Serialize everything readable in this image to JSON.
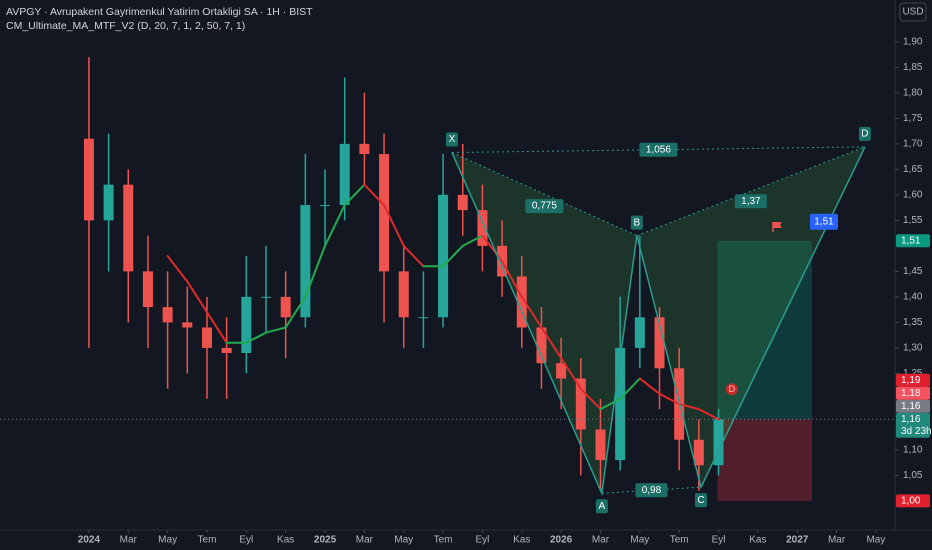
{
  "chart_data": {
    "type": "candlestick",
    "title": "AVPGY · Avrupakent Gayrimenkul Yatirim Ortakligi SA · 1H · BIST",
    "subtitle": "CM_Ultimate_MA_MTF_V2 (D, 20, 7, 1, 2, 50, 7, 1)",
    "currency": "USD",
    "up_color": "#26a69a",
    "down_color": "#ef5350",
    "x": [
      0,
      1,
      2,
      3,
      4,
      5,
      6,
      7,
      8,
      9,
      10,
      11,
      12,
      13,
      14,
      15,
      16,
      17,
      18,
      19,
      20,
      21,
      22,
      23,
      24,
      25,
      26,
      27,
      28,
      29,
      30,
      31,
      32
    ],
    "open": [
      1.71,
      1.55,
      1.62,
      1.45,
      1.38,
      1.35,
      1.34,
      1.3,
      1.29,
      1.4,
      1.4,
      1.36,
      1.58,
      1.58,
      1.7,
      1.68,
      1.45,
      1.36,
      1.36,
      1.6,
      1.57,
      1.5,
      1.44,
      1.34,
      1.27,
      1.24,
      1.14,
      1.08,
      1.3,
      1.36,
      1.26,
      1.12,
      1.07
    ],
    "high": [
      1.87,
      1.72,
      1.65,
      1.52,
      1.45,
      1.42,
      1.4,
      1.36,
      1.48,
      1.5,
      1.45,
      1.68,
      1.65,
      1.83,
      1.8,
      1.72,
      1.5,
      1.45,
      1.68,
      1.7,
      1.62,
      1.55,
      1.48,
      1.38,
      1.32,
      1.28,
      1.2,
      1.4,
      1.52,
      1.38,
      1.3,
      1.16,
      1.18
    ],
    "low": [
      1.3,
      1.45,
      1.35,
      1.3,
      1.22,
      1.25,
      1.2,
      1.2,
      1.25,
      1.33,
      1.28,
      1.34,
      1.5,
      1.55,
      1.62,
      1.35,
      1.3,
      1.3,
      1.34,
      1.52,
      1.45,
      1.4,
      1.3,
      1.22,
      1.18,
      1.05,
      1.02,
      1.06,
      1.26,
      1.18,
      1.06,
      1.02,
      1.05
    ],
    "close": [
      1.55,
      1.62,
      1.45,
      1.38,
      1.35,
      1.34,
      1.3,
      1.29,
      1.4,
      1.4,
      1.36,
      1.58,
      1.58,
      1.7,
      1.68,
      1.45,
      1.36,
      1.36,
      1.6,
      1.57,
      1.5,
      1.44,
      1.34,
      1.27,
      1.24,
      1.14,
      1.08,
      1.3,
      1.36,
      1.26,
      1.12,
      1.07,
      1.16
    ],
    "ma": {
      "x": [
        4,
        5,
        6,
        7,
        8,
        9,
        10,
        11,
        12,
        13,
        14,
        15,
        16,
        17,
        18,
        19,
        20,
        21,
        22,
        23,
        24,
        25,
        26,
        27,
        28,
        29,
        30,
        31,
        32
      ],
      "values": [
        1.48,
        1.43,
        1.37,
        1.31,
        1.31,
        1.33,
        1.34,
        1.4,
        1.5,
        1.58,
        1.62,
        1.58,
        1.5,
        1.46,
        1.46,
        1.5,
        1.52,
        1.47,
        1.4,
        1.34,
        1.28,
        1.22,
        1.18,
        1.2,
        1.24,
        1.21,
        1.19,
        1.18,
        1.16
      ],
      "up_color": "#22ab4e",
      "down_color": "#e02a2a"
    },
    "xlim": [
      -4.52,
      40.97
    ],
    "xticks": [
      {
        "value": 0,
        "label": "2024"
      },
      {
        "value": 2,
        "label": "Mar"
      },
      {
        "value": 4,
        "label": "May"
      },
      {
        "value": 6,
        "label": "Tem"
      },
      {
        "value": 8,
        "label": "Eyl"
      },
      {
        "value": 10,
        "label": "Kas"
      },
      {
        "value": 12,
        "label": "2025"
      },
      {
        "value": 14,
        "label": "Mar"
      },
      {
        "value": 16,
        "label": "May"
      },
      {
        "value": 18,
        "label": "Tem"
      },
      {
        "value": 20,
        "label": "Eyl"
      },
      {
        "value": 22,
        "label": "Kas"
      },
      {
        "value": 24,
        "label": "2026"
      },
      {
        "value": 26,
        "label": "Mar"
      },
      {
        "value": 28,
        "label": "May"
      },
      {
        "value": 30,
        "label": "Tem"
      },
      {
        "value": 32,
        "label": "Eyl"
      },
      {
        "value": 34,
        "label": "Kas"
      },
      {
        "value": 36,
        "label": "2027"
      },
      {
        "value": 38,
        "label": "Mar"
      },
      {
        "value": 40,
        "label": "May"
      }
    ],
    "ylim": [
      0.943,
      1.982
    ],
    "yticks": [
      {
        "value": 1.05,
        "label": "1,05"
      },
      {
        "value": 1.1,
        "label": "1,10"
      },
      {
        "value": 1.25,
        "label": "1,25"
      },
      {
        "value": 1.3,
        "label": "1,30"
      },
      {
        "value": 1.35,
        "label": "1,35"
      },
      {
        "value": 1.4,
        "label": "1,40"
      },
      {
        "value": 1.45,
        "label": "1,45"
      },
      {
        "value": 1.55,
        "label": "1,55"
      },
      {
        "value": 1.6,
        "label": "1,60"
      },
      {
        "value": 1.65,
        "label": "1,65"
      },
      {
        "value": 1.7,
        "label": "1,70"
      },
      {
        "value": 1.75,
        "label": "1,75"
      },
      {
        "value": 1.8,
        "label": "1,80"
      },
      {
        "value": 1.85,
        "label": "1,85"
      },
      {
        "value": 1.9,
        "label": "1,90"
      }
    ],
    "pattern": {
      "color": "#2a9d8f",
      "points": [
        {
          "label": "X",
          "x": 18.45,
          "value": 1.683
        },
        {
          "label": "A",
          "x": 26.07,
          "value": 1.015
        },
        {
          "label": "B",
          "x": 27.85,
          "value": 1.52
        },
        {
          "label": "C",
          "x": 31.11,
          "value": 1.027
        },
        {
          "label": "D",
          "x": 39.44,
          "value": 1.694
        }
      ],
      "ratios": [
        {
          "value": 0.775,
          "label": "0,775"
        },
        {
          "value": 1.056,
          "label": "1,056"
        },
        {
          "value": 0.98,
          "label": "0,98"
        },
        {
          "value": 1.37,
          "label": "1,37"
        }
      ]
    },
    "marker": {
      "label": "D",
      "x": 32.68,
      "value": 1.219,
      "color": "#c62828"
    },
    "position": {
      "x": [
        31.95,
        36.75
      ],
      "entry": 1.16,
      "target": {
        "value": 1.51,
        "label": "1,51"
      },
      "stop": 1.0
    },
    "price_tags": [
      {
        "value": 1.51,
        "label": "1,51",
        "color": "#089981"
      },
      {
        "value": 1.19,
        "label": "1,19",
        "color": "#e0202e"
      },
      {
        "value": 1.18,
        "label": "1,18",
        "color": "#f7525f"
      },
      {
        "value": 1.16,
        "label": "1,16",
        "color": "#787b86"
      },
      {
        "value": 1.16,
        "label": "1,16",
        "color": "#22897d",
        "countdown": "3d 23h"
      },
      {
        "value": 1.0,
        "label": "1,00",
        "color": "#e0202e"
      }
    ]
  }
}
